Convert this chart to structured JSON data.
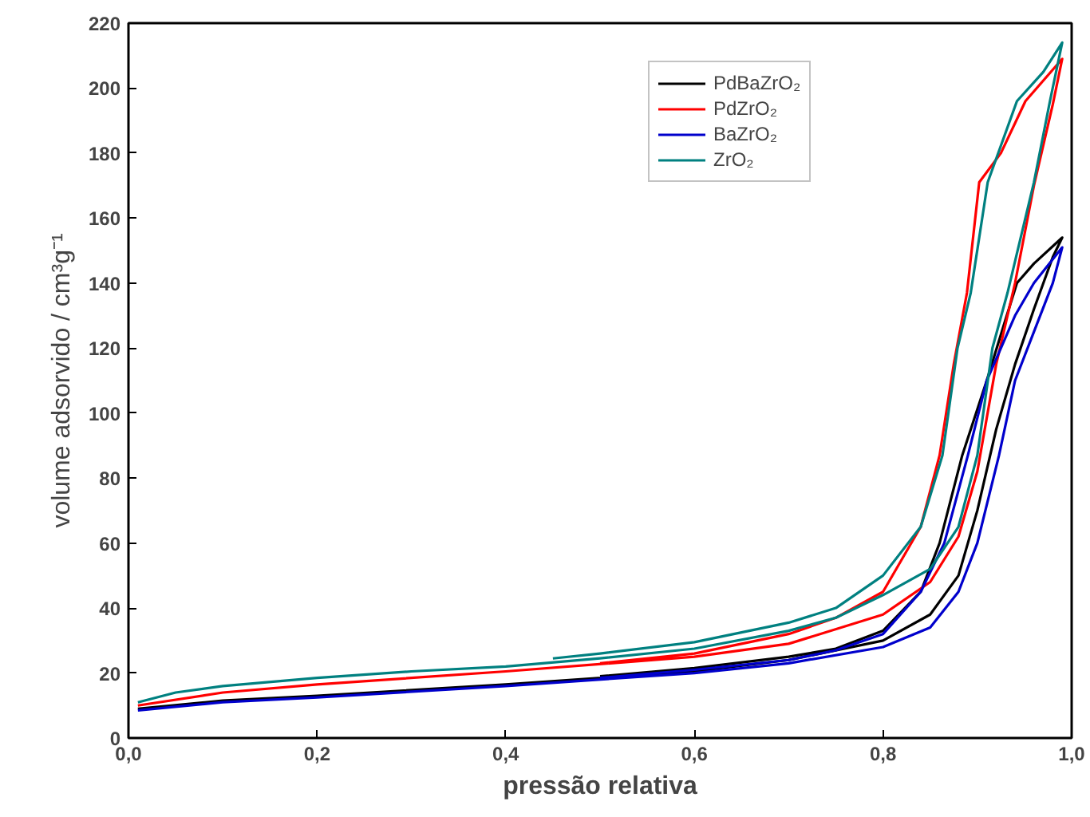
{
  "chart_data": {
    "type": "line",
    "xlabel": "pressão relativa",
    "ylabel": "volume adsorvido / cm³g⁻¹",
    "xlim": [
      0,
      1
    ],
    "ylim": [
      0,
      220
    ],
    "xticks": [
      {
        "value": 0,
        "label": "0,0"
      },
      {
        "value": 0.2,
        "label": "0,2"
      },
      {
        "value": 0.4,
        "label": "0,4"
      },
      {
        "value": 0.6,
        "label": "0,6"
      },
      {
        "value": 0.8,
        "label": "0,8"
      },
      {
        "value": 1,
        "label": "1,0"
      }
    ],
    "yticks": [
      0,
      20,
      40,
      60,
      80,
      100,
      120,
      140,
      160,
      180,
      200,
      220
    ],
    "grid": false,
    "legend": "top right",
    "marker": "none",
    "line_style": "solid",
    "series": [
      {
        "name": "PdBaZrO₂",
        "color": "#000000",
        "x": [
          0.01,
          0.1,
          0.2,
          0.4,
          0.6,
          0.7,
          0.8,
          0.85,
          0.88,
          0.9,
          0.92,
          0.94,
          0.96,
          0.98,
          0.99,
          0.96,
          0.942,
          0.928,
          0.91,
          0.884,
          0.86,
          0.84,
          0.8,
          0.75,
          0.7,
          0.6,
          0.5
        ],
        "values": [
          9,
          11.5,
          13,
          16.5,
          20.5,
          24,
          30,
          38,
          50,
          70,
          95,
          115,
          132,
          148,
          154,
          146,
          140,
          127,
          110,
          87,
          60,
          45,
          33,
          27.5,
          25,
          21.5,
          19
        ]
      },
      {
        "name": "PdZrO₂",
        "color": "#ff0000",
        "x": [
          0.01,
          0.1,
          0.2,
          0.4,
          0.6,
          0.7,
          0.8,
          0.85,
          0.88,
          0.9,
          0.92,
          0.94,
          0.96,
          0.98,
          0.99,
          0.951,
          0.925,
          0.902,
          0.889,
          0.875,
          0.86,
          0.84,
          0.8,
          0.75,
          0.7,
          0.6,
          0.5
        ],
        "values": [
          10,
          14,
          16.5,
          20.5,
          25,
          29,
          38,
          48,
          62,
          82,
          115,
          140,
          170,
          195,
          209,
          196,
          180,
          171,
          137,
          115,
          87,
          65,
          45,
          37,
          32,
          26,
          23
        ]
      },
      {
        "name": "BaZrO₂",
        "color": "#0000cc",
        "x": [
          0.01,
          0.1,
          0.2,
          0.4,
          0.6,
          0.7,
          0.8,
          0.85,
          0.88,
          0.9,
          0.923,
          0.94,
          0.96,
          0.98,
          0.99,
          0.96,
          0.94,
          0.91,
          0.89,
          0.865,
          0.84,
          0.8,
          0.75,
          0.7,
          0.6,
          0.5
        ],
        "values": [
          8.5,
          11,
          12.5,
          16,
          20,
          23,
          28,
          34,
          45,
          60,
          87,
          110,
          125,
          140,
          151,
          140,
          130,
          110,
          87,
          60,
          45,
          32,
          27,
          24,
          21,
          18.5
        ]
      },
      {
        "name": "ZrO₂",
        "color": "#008080",
        "x": [
          0.01,
          0.05,
          0.1,
          0.2,
          0.3,
          0.4,
          0.5,
          0.6,
          0.7,
          0.75,
          0.8,
          0.85,
          0.88,
          0.9,
          0.916,
          0.932,
          0.96,
          0.977,
          0.99,
          0.97,
          0.942,
          0.911,
          0.893,
          0.879,
          0.863,
          0.84,
          0.8,
          0.75,
          0.7,
          0.6,
          0.5,
          0.45
        ],
        "values": [
          11,
          14,
          16,
          18.5,
          20.5,
          22,
          24.5,
          27.5,
          33,
          37,
          44,
          52,
          65,
          87,
          120,
          137,
          171,
          196,
          214,
          205,
          196,
          171,
          137,
          120,
          87,
          65,
          50,
          40,
          35.5,
          29.5,
          26,
          24.5
        ]
      }
    ]
  }
}
